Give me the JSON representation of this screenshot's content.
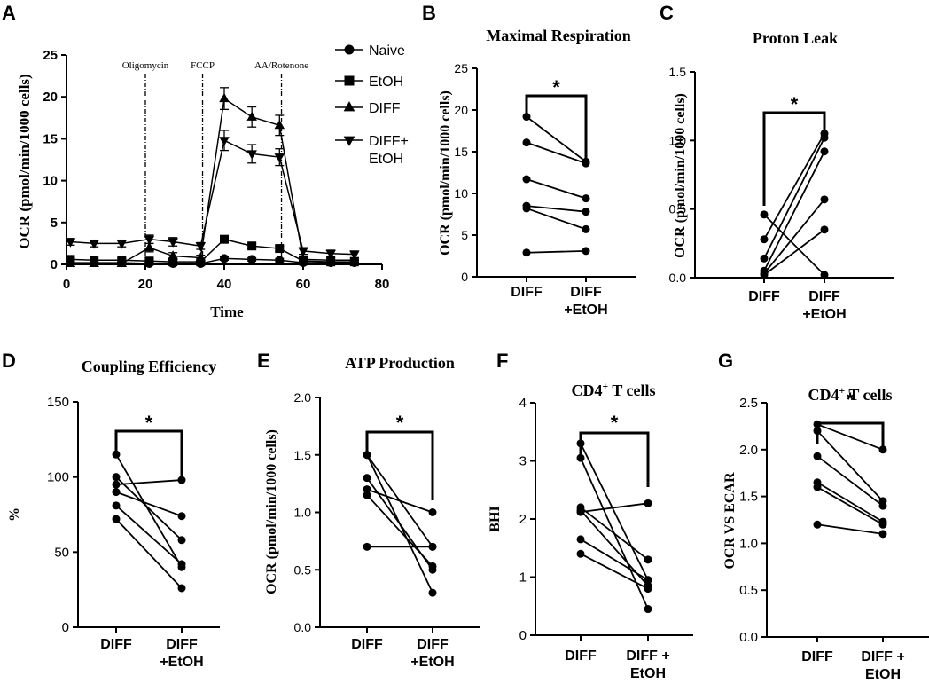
{
  "colors": {
    "ink": "#000000",
    "background": "#ffffff"
  },
  "chart_data": [
    {
      "panel": "A",
      "type": "line",
      "title": "",
      "xlabel": "Time",
      "ylabel": "OCR (pmol/min/1000 cells)",
      "xlim": [
        0,
        80
      ],
      "ylim": [
        0,
        25
      ],
      "xticks": [
        "0",
        "20",
        "40",
        "60",
        "80"
      ],
      "yticks": [
        "0",
        "5",
        "10",
        "15",
        "20",
        "25"
      ],
      "x": [
        1,
        7,
        14,
        21,
        27,
        34,
        40,
        47,
        54,
        60,
        67,
        73
      ],
      "injections": [
        {
          "label": "Oligomycin",
          "x": 20
        },
        {
          "label": "FCCP",
          "x": 34.5
        },
        {
          "label": "AA/Rotenone",
          "x": 54.5
        }
      ],
      "legend": [
        "Naive",
        "EtOH",
        "DIFF",
        "DIFF+ EtOH"
      ],
      "series": [
        {
          "name": "Naive",
          "marker": "circle",
          "values": [
            0.2,
            0.2,
            0.2,
            0.1,
            0.1,
            0.1,
            0.7,
            0.6,
            0.5,
            0.2,
            0.2,
            0.2
          ],
          "errors": [
            0.1,
            0.1,
            0.1,
            0.1,
            0.1,
            0.1,
            0.2,
            0.2,
            0.2,
            0.1,
            0.1,
            0.1
          ]
        },
        {
          "name": "EtOH",
          "marker": "square",
          "values": [
            0.6,
            0.5,
            0.5,
            0.4,
            0.3,
            0.3,
            3.0,
            2.2,
            1.9,
            0.4,
            0.3,
            0.3
          ],
          "errors": [
            0.2,
            0.2,
            0.2,
            0.2,
            0.2,
            0.2,
            0.4,
            0.3,
            0.3,
            0.2,
            0.2,
            0.2
          ]
        },
        {
          "name": "DIFF",
          "marker": "triangle-up",
          "values": [
            0.1,
            0.1,
            0.1,
            2.0,
            1.0,
            0.8,
            19.8,
            17.6,
            16.6,
            0.6,
            0.5,
            0.5
          ],
          "errors": [
            0.1,
            0.1,
            0.1,
            0.5,
            0.4,
            0.3,
            1.3,
            1.2,
            1.2,
            0.3,
            0.3,
            0.3
          ]
        },
        {
          "name": "DIFF+ EtOH",
          "marker": "triangle-down",
          "values": [
            2.7,
            2.5,
            2.5,
            3.0,
            2.7,
            2.2,
            14.8,
            13.2,
            12.8,
            1.6,
            1.3,
            1.2
          ],
          "errors": [
            0.4,
            0.4,
            0.4,
            0.5,
            0.5,
            0.4,
            1.2,
            1.1,
            1.0,
            0.4,
            0.4,
            0.4
          ]
        }
      ]
    },
    {
      "panel": "B",
      "type": "line",
      "title": "Maximal Respiration",
      "ylabel": "OCR (pmol/min/1000 cells)",
      "ylim": [
        0,
        25
      ],
      "yticks": [
        "0",
        "5",
        "10",
        "15",
        "20",
        "25"
      ],
      "categories": [
        "DIFF",
        "DIFF +EtOH"
      ],
      "significance": "*",
      "pairs": [
        [
          19.2,
          13.8
        ],
        [
          16.1,
          13.6
        ],
        [
          11.7,
          9.4
        ],
        [
          8.5,
          7.8
        ],
        [
          8.2,
          5.7
        ],
        [
          2.9,
          3.1
        ]
      ]
    },
    {
      "panel": "C",
      "type": "line",
      "title": "Proton Leak",
      "ylabel": "OCR (pmol/min/1000 cells)",
      "ylim": [
        0,
        1.5
      ],
      "yticks": [
        "0.0",
        "0.5",
        "1.0",
        "1.5"
      ],
      "categories": [
        "DIFF",
        "DIFF +EtOH"
      ],
      "significance": "*",
      "pairs": [
        [
          0.46,
          0.02
        ],
        [
          0.28,
          1.05
        ],
        [
          0.14,
          1.02
        ],
        [
          0.05,
          0.92
        ],
        [
          0.03,
          0.57
        ],
        [
          0.02,
          0.35
        ]
      ]
    },
    {
      "panel": "D",
      "type": "line",
      "title": "Coupling Efficiency",
      "ylabel": "%",
      "ylim": [
        0,
        150
      ],
      "yticks": [
        "0",
        "50",
        "100",
        "150"
      ],
      "categories": [
        "DIFF",
        "DIFF +EtOH"
      ],
      "significance": "*",
      "pairs": [
        [
          115,
          40
        ],
        [
          100,
          58
        ],
        [
          95,
          98
        ],
        [
          90,
          74
        ],
        [
          81,
          42
        ],
        [
          72,
          26
        ]
      ]
    },
    {
      "panel": "E",
      "type": "line",
      "title": "ATP Production",
      "ylabel": "OCR (pmol/min/1000 cells)",
      "ylim": [
        0,
        2.0
      ],
      "yticks": [
        "0.0",
        "0.5",
        "1.0",
        "1.5",
        "2.0"
      ],
      "categories": [
        "DIFF",
        "DIFF +EtOH"
      ],
      "significance": "*",
      "pairs": [
        [
          1.5,
          0.7
        ],
        [
          1.5,
          0.3
        ],
        [
          1.3,
          0.5
        ],
        [
          1.2,
          1.0
        ],
        [
          1.15,
          0.53
        ],
        [
          0.7,
          0.7
        ]
      ]
    },
    {
      "panel": "F",
      "type": "line",
      "title": "CD4⁺ T cells",
      "ylabel": "BHI",
      "ylim": [
        0,
        4
      ],
      "yticks": [
        "0",
        "1",
        "2",
        "3",
        "4"
      ],
      "categories": [
        "DIFF",
        "DIFF + EtOH"
      ],
      "significance": "*",
      "pairs": [
        [
          3.3,
          0.95
        ],
        [
          3.05,
          0.45
        ],
        [
          2.2,
          1.3
        ],
        [
          2.15,
          0.85
        ],
        [
          1.65,
          0.95
        ],
        [
          1.4,
          0.8
        ],
        [
          2.12,
          2.27
        ]
      ]
    },
    {
      "panel": "G",
      "type": "line",
      "title": "CD4⁺ T cells",
      "ylabel": "OCR VS ECAR",
      "ylim": [
        0,
        2.5
      ],
      "yticks": [
        "0.0",
        "0.5",
        "1.0",
        "1.5",
        "2.0",
        "2.5"
      ],
      "categories": [
        "DIFF",
        "DIFF + EtOH"
      ],
      "significance": "*",
      "pairs": [
        [
          2.27,
          2.0
        ],
        [
          2.2,
          1.45
        ],
        [
          1.93,
          1.4
        ],
        [
          1.65,
          1.23
        ],
        [
          1.6,
          1.2
        ],
        [
          1.2,
          1.1
        ]
      ]
    }
  ]
}
